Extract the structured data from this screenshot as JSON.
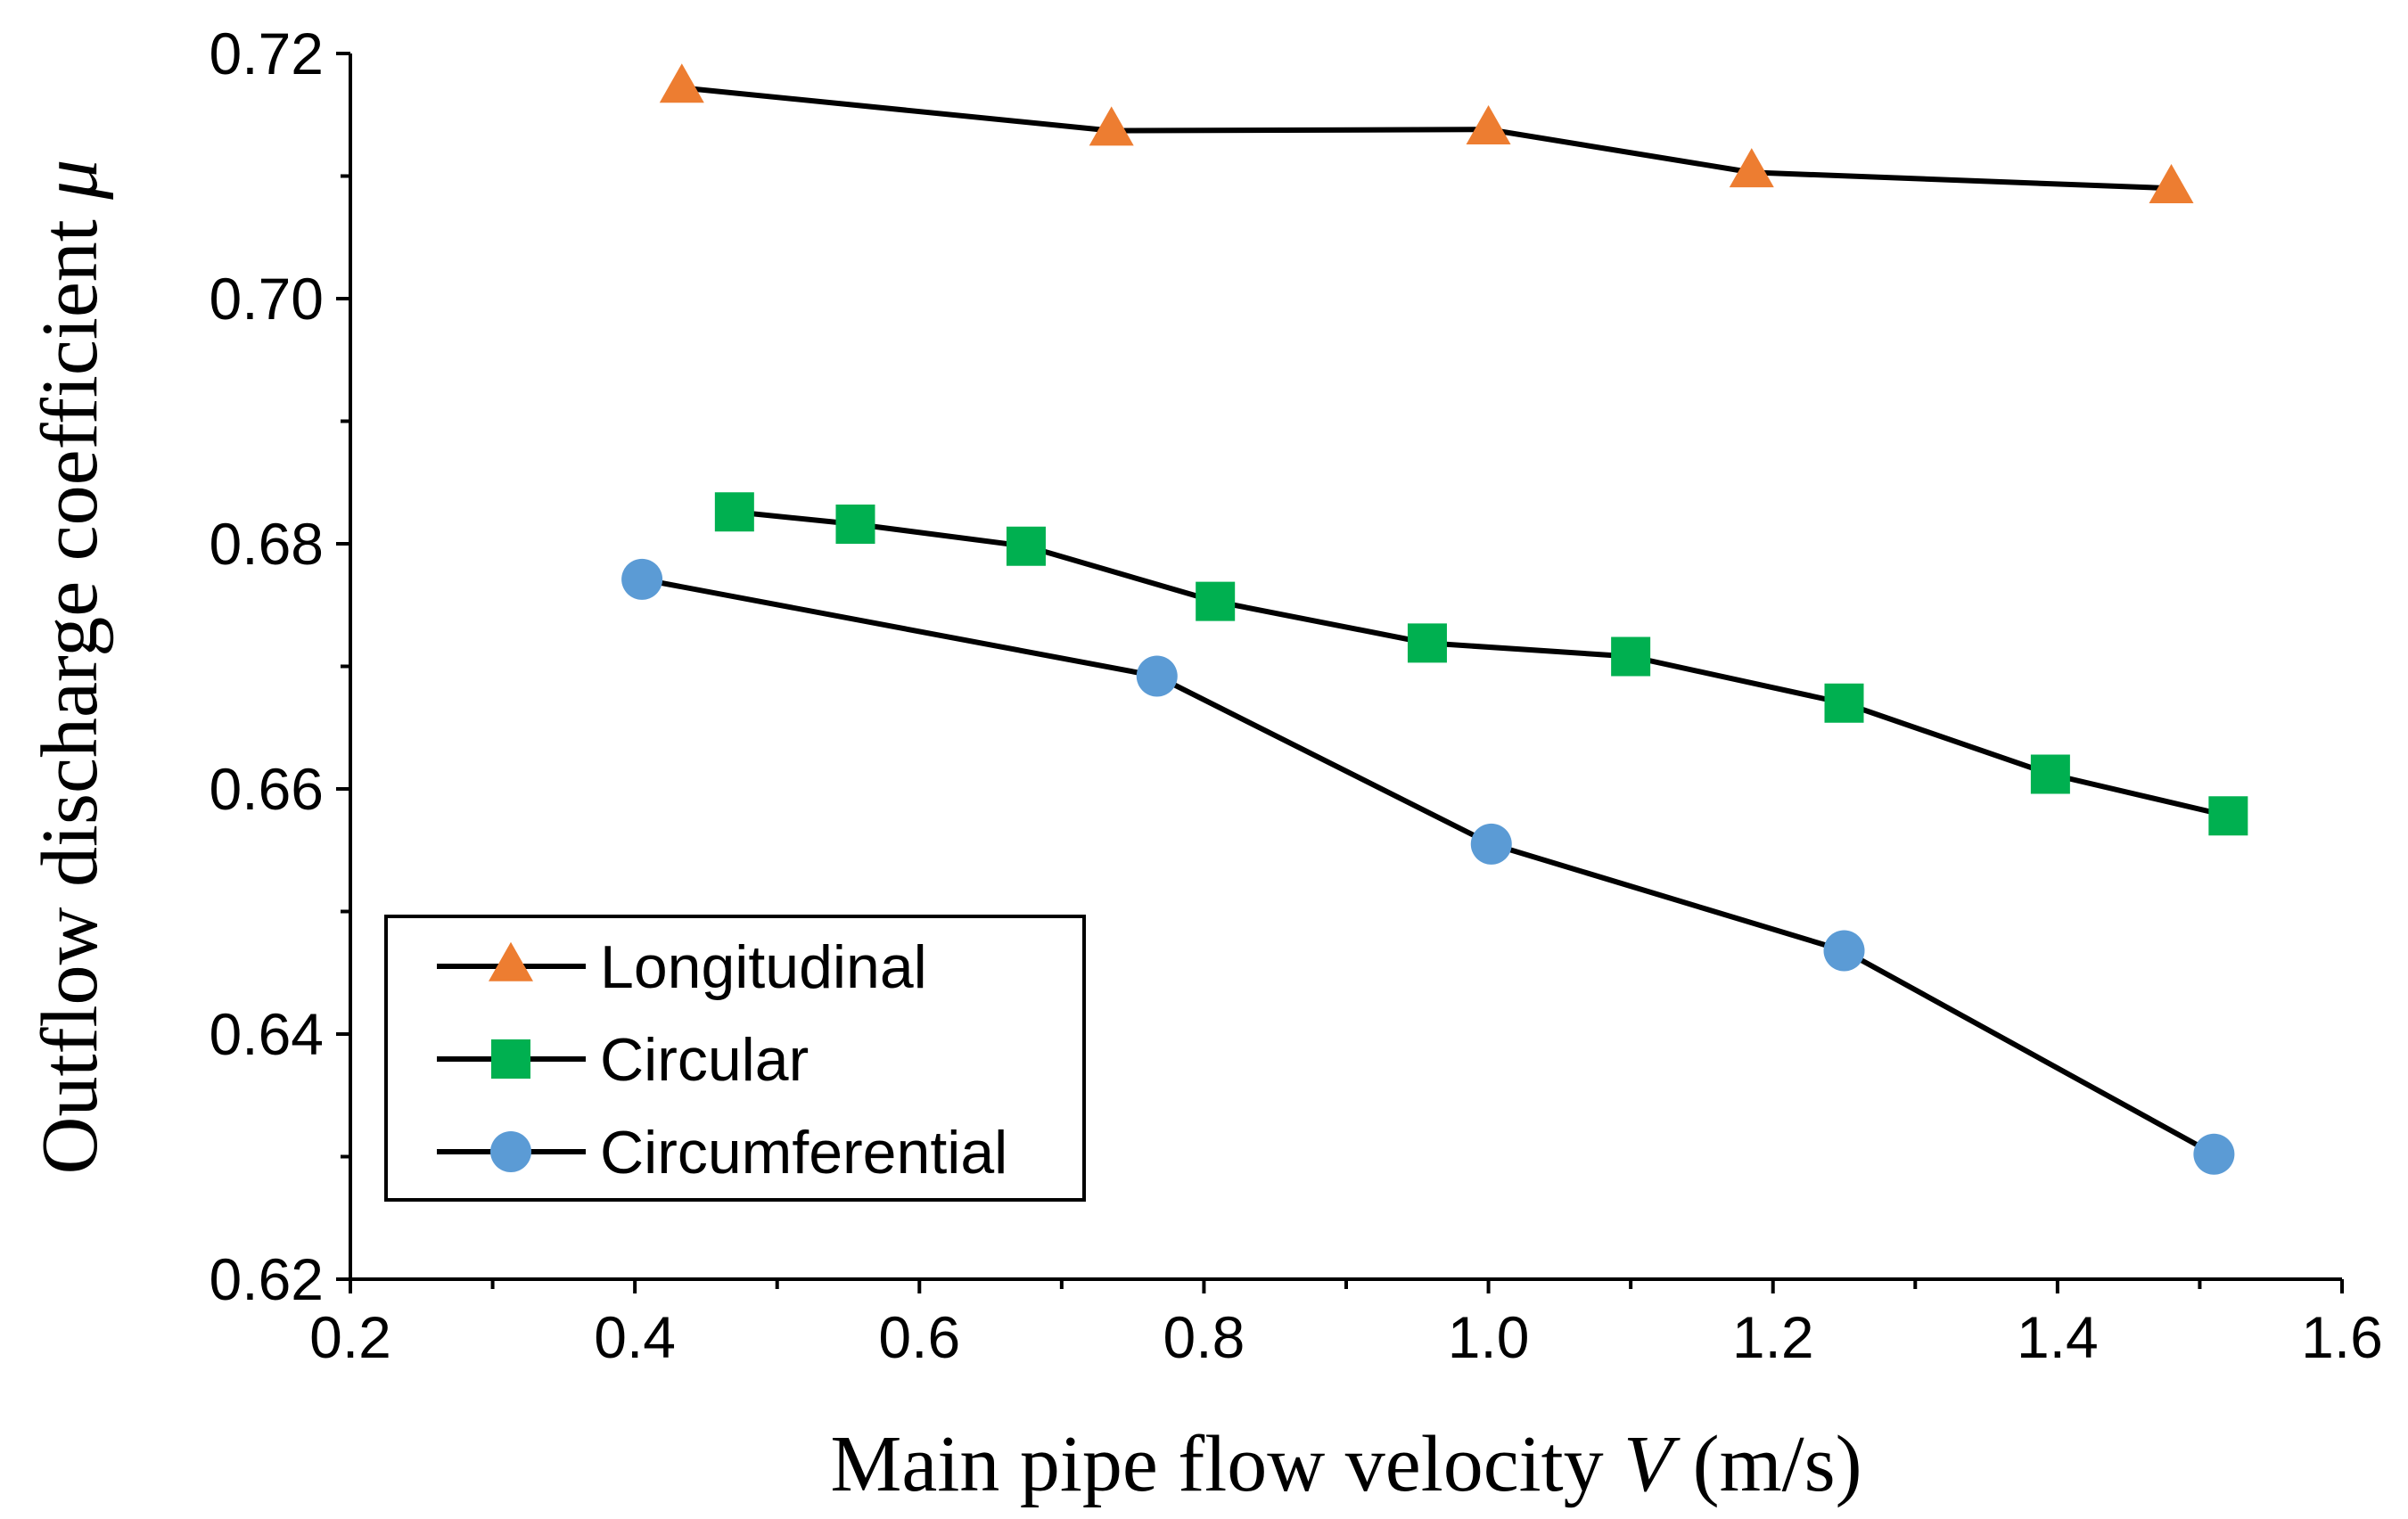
{
  "chart_data": {
    "type": "line",
    "title": "",
    "xlabel": "Main pipe flow velocity V (m/s)",
    "xlabel_parts": {
      "before": "Main pipe flow velocity ",
      "var": "V",
      "after": " (m/s)"
    },
    "ylabel": "Outflow discharge coefficient μ",
    "ylabel_parts": {
      "before": "Outflow discharge coefficient ",
      "var": "μ"
    },
    "xlim": [
      0.2,
      1.6
    ],
    "ylim": [
      0.62,
      0.72
    ],
    "x_ticks": [
      0.2,
      0.4,
      0.6,
      0.8,
      1.0,
      1.2,
      1.4,
      1.6
    ],
    "x_tick_labels": [
      "0.2",
      "0.4",
      "0.6",
      "0.8",
      "1.0",
      "1.2",
      "1.4",
      "1.6"
    ],
    "y_ticks": [
      0.62,
      0.64,
      0.66,
      0.68,
      0.7,
      0.72
    ],
    "y_tick_labels": [
      "0.62",
      "0.64",
      "0.66",
      "0.68",
      "0.70",
      "0.72"
    ],
    "x_minor_step": 0.1,
    "y_minor_step": 0.01,
    "grid": false,
    "legend_position": "bottom-left",
    "series": [
      {
        "name": "Longitudinal",
        "marker": "triangle",
        "color": "#ED7D31",
        "x": [
          0.433,
          0.735,
          1.0,
          1.185,
          1.48
        ],
        "y": [
          0.7172,
          0.7137,
          0.7138,
          0.7103,
          0.709
        ]
      },
      {
        "name": "Circular",
        "marker": "square",
        "color": "#00B050",
        "x": [
          0.47,
          0.555,
          0.675,
          0.808,
          0.957,
          1.1,
          1.25,
          1.395,
          1.52
        ],
        "y": [
          0.6826,
          0.6816,
          0.6798,
          0.6753,
          0.6719,
          0.6708,
          0.667,
          0.6612,
          0.6578
        ]
      },
      {
        "name": "Circumferential",
        "marker": "circle",
        "color": "#5B9BD5",
        "x": [
          0.405,
          0.767,
          1.002,
          1.25,
          1.51
        ],
        "y": [
          0.6771,
          0.6692,
          0.6555,
          0.6468,
          0.6302
        ]
      }
    ]
  }
}
